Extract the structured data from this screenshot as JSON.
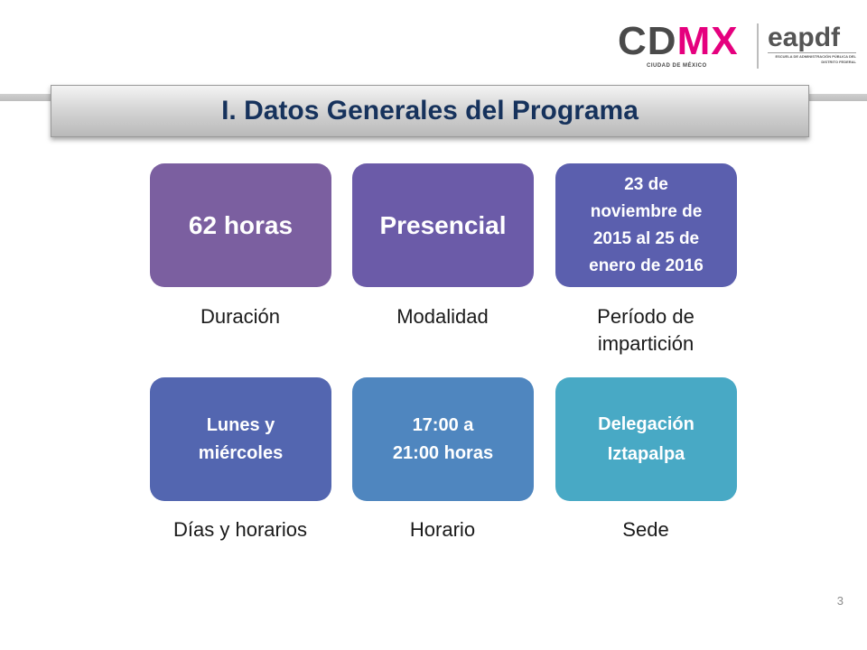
{
  "logo": {
    "cdmx_cd": "CD",
    "cdmx_mx": "MX",
    "cdmx_city": "CIUDAD DE MÉXICO",
    "eapdf": "eapdf",
    "eapdf_subtitle": "ESCUELA DE ADMINISTRACIÓN PÚBLICA DEL DISTRITO FEDERAL"
  },
  "header": {
    "title": "I. Datos Generales del Programa"
  },
  "cards": [
    {
      "value": "62 horas",
      "caption": "Duración",
      "color": "#7b5fa0"
    },
    {
      "value": "Presencial",
      "caption": "Modalidad",
      "color": "#6b5ba8"
    },
    {
      "value": "23 de\nnoviembre de\n2015 al 25 de\nenero de 2016",
      "caption": "Período de\nimpartición",
      "color": "#5b5fae"
    },
    {
      "value": "Lunes y\nmiércoles",
      "caption": "Días y horarios",
      "color": "#5366b0"
    },
    {
      "value": "17:00 a\n21:00 horas",
      "caption": "Horario",
      "color": "#4f86bf"
    },
    {
      "value": "Delegación\nIztapalpa",
      "caption": "Sede",
      "color": "#48a9c5"
    }
  ],
  "footer": {
    "page_number": "3"
  }
}
